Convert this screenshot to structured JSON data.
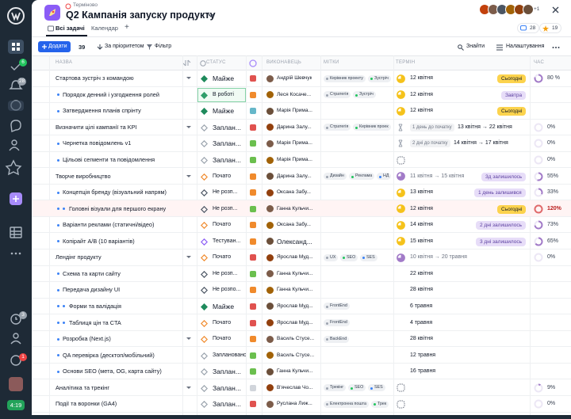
{
  "sidebar": {
    "badges": [
      "6",
      "28",
      "3",
      "1"
    ],
    "clock": "4:19"
  },
  "header": {
    "urgent": "Терміново",
    "title": "Q2 Кампанія запуску продукту",
    "avatars_more": "+1",
    "comments": "28",
    "likes": "19"
  },
  "tabs": [
    "Всі задачі",
    "Календар",
    "+"
  ],
  "toolbar": {
    "add": "Додати",
    "count": "39",
    "sort": "За пріоритетом",
    "filter": "Фільтр",
    "search": "Знайти",
    "settings": "Налаштування"
  },
  "columns": [
    "НАЗВА",
    "СТАТУС",
    "ВИКОНАВЕЦЬ",
    "МІТКИ",
    "ТЕРМІН",
    "ЧАС"
  ],
  "rows": [
    {
      "name": "Стартова зустріч з командою",
      "level": 0,
      "expand": true,
      "status": "Майже",
      "status_color": "#1f8a5c",
      "priority_color": "#e0524f",
      "assignee": "Андрій Шевчук",
      "tags": [
        "Керівник проекту",
        "Зустріч"
      ],
      "term_color": "#f5c21b",
      "date": "12 квітня",
      "badge": "Сьогодні",
      "badge_color": "#fcd34d",
      "time": "80 %",
      "time_color": "#a27bc8"
    },
    {
      "name": "Порядок денний і узгодження ролей",
      "level": 1,
      "status": "В роботі",
      "status_color": "#2f9e6a",
      "priority_color": "#f08a2c",
      "assignee": "Леся Косаче...",
      "tags": [
        "Стратегія",
        "Зустріч"
      ],
      "term_color": "#f5c21b",
      "date": "12 квітня",
      "badge": "Завтра",
      "badge_color": "#e7ddf8"
    },
    {
      "name": "Затвердження планів спрінту",
      "level": 1,
      "status": "Майже",
      "status_color": "#1f8a5c",
      "priority_color": "#66b7c9",
      "assignee": "Марія Прима...",
      "term_color": "#f5c21b",
      "date": "12 квітня",
      "badge": "Сьогодні",
      "badge_color": "#fcd34d"
    },
    {
      "name": "Визначити цілі кампанії та KPI",
      "level": 0,
      "expand": true,
      "status": "Заплан...",
      "status_color": "#9aa3ad",
      "priority_color": "#e0524f",
      "assignee": "Дарина Залу...",
      "tags": [
        "Стратегія",
        "Керівник проек"
      ],
      "start_hint": "1 день до початку",
      "date": "13 квітня → 22 квітня",
      "time": "0%",
      "time_color": "#a27bc8"
    },
    {
      "name": "Чернетка повідомлень v1",
      "level": 1,
      "status": "Заплан...",
      "status_color": "#9aa3ad",
      "priority_color": "#6bbf4e",
      "assignee": "Марія Прима...",
      "start_hint": "2 дні до початку",
      "date": "14 квітня → 17 квітня",
      "time": "0%",
      "time_color": "#a27bc8"
    },
    {
      "name": "Цільові сегменти та повідомлення",
      "level": 1,
      "status": "Заплан...",
      "status_color": "#9aa3ad",
      "priority_color": "#6bbf4e",
      "assignee": "Марія Прима...",
      "time": "0%",
      "time_color": "#a27bc8"
    },
    {
      "name": "Творче виробництво",
      "level": 0,
      "expand": true,
      "status": "Почато",
      "status_color": "#f08a2c",
      "priority_color": "#f08a2c",
      "assignee": "Дарина Залу...",
      "tags": [
        "Дизайн",
        "Реклама",
        "НД"
      ],
      "term_color": "#a27bc8",
      "date": "11 квітня → 15 квітня",
      "badge": "3д залишилось",
      "badge_color": "#e7ddf8",
      "time": "55%",
      "time_color": "#a27bc8"
    },
    {
      "name": "Концепція бренду (візуальний напрям)",
      "level": 1,
      "status": "Не розп...",
      "status_color": "#4b5563",
      "priority_color": "#f08a2c",
      "assignee": "Оксана Забу...",
      "term_color": "#f5c21b",
      "date": "13 квітня",
      "badge": "1 день залишився",
      "badge_color": "#e7ddf8",
      "time": "33%",
      "time_color": "#a27bc8"
    },
    {
      "name": "Головні візуали для першого екрану",
      "level": 2,
      "status": "Не розп...",
      "status_color": "#4b5563",
      "priority_color": "#6bbf4e",
      "assignee": "Ганна Кульчи...",
      "term_color": "#f5c21b",
      "date": "12 квітня",
      "badge": "Сьогодні",
      "badge_color": "#fcd34d",
      "time": "120%",
      "time_color": "#e06a6a",
      "highlight": "#fff4f4"
    },
    {
      "name": "Варіанти реклами (статичні/відео)",
      "level": 1,
      "status": "Почато",
      "status_color": "#f08a2c",
      "priority_color": "#f08a2c",
      "assignee": "Оксана Забу...",
      "term_color": "#f5c21b",
      "date": "14 квітня",
      "badge": "2 дні залишилось",
      "badge_color": "#e7ddf8",
      "time": "73%",
      "time_color": "#a27bc8"
    },
    {
      "name": "Копірайт A/B (10 варіантів)",
      "level": 1,
      "status": "Тестуван...",
      "status_color": "#8b5cf6",
      "priority_color": "#f08a2c",
      "assignee": "Олександ...",
      "term_color": "#f5c21b",
      "date": "15 квітня",
      "badge": "3 дні залишилось",
      "badge_color": "#e7ddf8",
      "time": "65%",
      "time_color": "#a27bc8"
    },
    {
      "name": "Лендінг продукту",
      "level": 0,
      "expand": true,
      "status": "Почато",
      "status_color": "#f08a2c",
      "priority_color": "#e0524f",
      "assignee": "Ярослав Муд...",
      "tags": [
        "UX",
        "SEO",
        "SES"
      ],
      "term_color": "#a27bc8",
      "date": "10 квітня → 20 травня",
      "time": "0%",
      "time_color": "#a27bc8"
    },
    {
      "name": "Схема та карти сайту",
      "level": 1,
      "status": "Не розп...",
      "status_color": "#4b5563",
      "priority_color": "#6bbf4e",
      "assignee": "Ганна Кульчи...",
      "date": "22 квітня"
    },
    {
      "name": "Передача дизайну UI",
      "level": 1,
      "status": "Не розпо...",
      "status_color": "#4b5563",
      "priority_color": "#f08a2c",
      "assignee": "Ганна Кульчи...",
      "date": "28 квітня"
    },
    {
      "name": "Форми та валідація",
      "level": 2,
      "status": "Майже",
      "status_color": "#1f8a5c",
      "priority_color": "#e0524f",
      "assignee": "Ярослав Муд...",
      "tags": [
        "FrontEnd"
      ],
      "date": "6 травня"
    },
    {
      "name": "Таблиця цін та CTA",
      "level": 2,
      "status": "Почато",
      "status_color": "#f08a2c",
      "priority_color": "#e0524f",
      "assignee": "Ярослав Муд...",
      "tags": [
        "FrontEnd"
      ],
      "date": "4 травня"
    },
    {
      "name": "Розробка (Next.js)",
      "level": 1,
      "expand": true,
      "status": "Почато",
      "status_color": "#f08a2c",
      "priority_color": "#f08a2c",
      "assignee": "Василь Стусе...",
      "tags": [
        "BackEnd"
      ],
      "date": "28 квітня"
    },
    {
      "name": "QA перевірка (десктоп/мобільний)",
      "level": 1,
      "status": "Заплановано...",
      "status_color": "#9aa3ad",
      "priority_color": "#6bbf4e",
      "assignee": "Василь Стусе...",
      "date": "12 травня"
    },
    {
      "name": "Основи SEO (мета, OG, карта сайту)",
      "level": 1,
      "status": "Заплан...",
      "status_color": "#9aa3ad",
      "priority_color": "#6bbf4e",
      "assignee": "Ганна Кульчи...",
      "date": "16 травня"
    },
    {
      "name": "Аналітика та трекінг",
      "level": 0,
      "expand": true,
      "status": "Заплан...",
      "status_color": "#9aa3ad",
      "priority_color": "#d1d5db",
      "assignee": "В'ячеслав Чо...",
      "tags": [
        "Трекінг",
        "SEO",
        "SES"
      ],
      "time": "9%",
      "time_color": "#a27bc8"
    },
    {
      "name": "Події та воронки (GA4)",
      "level": 0,
      "status": "Заплан...",
      "status_color": "#9aa3ad",
      "priority_color": "#e0524f",
      "assignee": "Руслана Лиж...",
      "tags": [
        "Електронна пошта",
        "Трек"
      ],
      "time": "0%",
      "time_color": "#a27bc8"
    }
  ]
}
